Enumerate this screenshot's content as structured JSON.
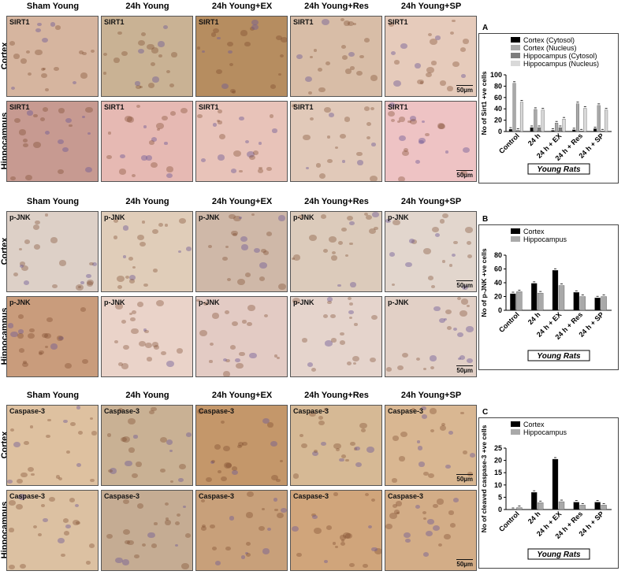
{
  "columns": [
    "Sham Young",
    "24h Young",
    "24h Young+EX",
    "24h Young+Res",
    "24h Young+SP"
  ],
  "rows": [
    "Cortex",
    "Hippocampus"
  ],
  "scale_bar": "50µm",
  "panels": [
    {
      "marker": "SIRT1",
      "tile_label": "SIRT1",
      "tints": [
        "#d6b59f",
        "#c9b294",
        "#b68d60",
        "#d8bda7",
        "#e6cbbb",
        "#c79a91",
        "#e6b9b3",
        "#e8c3b9",
        "#e1c9b9",
        "#eec3c4"
      ]
    },
    {
      "marker": "p-JNK",
      "tile_label": "p-JNK",
      "tints": [
        "#ddd0c7",
        "#e0cdb9",
        "#cfb8a8",
        "#dccbbb",
        "#e2d6cd",
        "#c99c7c",
        "#ead3c9",
        "#e3cbc4",
        "#e5d4cc",
        "#e2d0c6"
      ]
    },
    {
      "marker": "Caspase-3",
      "tile_label": "Caspase-3",
      "tints": [
        "#dec1a0",
        "#c9b194",
        "#c4976a",
        "#d6b995",
        "#d9b792",
        "#dcc1a2",
        "#c5ac93",
        "#c8a07a",
        "#d0a57b",
        "#d3ad87"
      ]
    }
  ],
  "chart_data": [
    {
      "type": "bar",
      "panel_letter": "A",
      "ylabel": "No of Sirt1 +ve cells",
      "ylim": [
        0,
        100
      ],
      "yticks": [
        0,
        20,
        40,
        60,
        80,
        100
      ],
      "categories": [
        "Control",
        "24 h",
        "24 h + EX",
        "24 h + Res",
        "24 h + SP"
      ],
      "footer": "Young Rats",
      "legend_position": "top",
      "series": [
        {
          "name": "Cortex (Cytosol)",
          "color": "#000000",
          "values": [
            4,
            7,
            2,
            3,
            5
          ]
        },
        {
          "name": "Cortex (Nucleus)",
          "color": "#a9a9a9",
          "values": [
            85,
            39,
            15,
            49,
            46
          ]
        },
        {
          "name": "Hippocampus (Cytosol)",
          "color": "#7d7d7d",
          "values": [
            2,
            7,
            7,
            1,
            1
          ]
        },
        {
          "name": "Hippocampus (Nucleus)",
          "color": "#d9d9d9",
          "values": [
            52,
            38,
            22,
            41,
            38
          ]
        }
      ]
    },
    {
      "type": "bar",
      "panel_letter": "B",
      "ylabel": "No of p-JNK +ve cells",
      "ylim": [
        0,
        80
      ],
      "yticks": [
        0,
        20,
        40,
        60,
        80
      ],
      "categories": [
        "Control",
        "24 h",
        "24 h + EX",
        "24 h + Res",
        "24 h + SP"
      ],
      "footer": "Young Rats",
      "legend_position": "top",
      "series": [
        {
          "name": "Cortex",
          "color": "#000000",
          "values": [
            24,
            39,
            58,
            26,
            18
          ]
        },
        {
          "name": "Hippocampus",
          "color": "#a9a9a9",
          "values": [
            27,
            25,
            36,
            20,
            20
          ]
        }
      ]
    },
    {
      "type": "bar",
      "panel_letter": "C",
      "ylabel": "No of cleaved caspase-3 +ve cells",
      "ylim": [
        0,
        25
      ],
      "yticks": [
        0,
        5,
        10,
        15,
        20,
        25
      ],
      "categories": [
        "Control",
        "24 h",
        "24 h + EX",
        "24 h + Res",
        "24 h + SP"
      ],
      "footer": "Young Rats",
      "legend_position": "top",
      "series": [
        {
          "name": "Cortex",
          "color": "#000000",
          "values": [
            0,
            7,
            20.5,
            3,
            3
          ]
        },
        {
          "name": "Hippocampus",
          "color": "#a9a9a9",
          "values": [
            0.8,
            2.8,
            3.2,
            1.8,
            1.8
          ]
        }
      ]
    }
  ]
}
